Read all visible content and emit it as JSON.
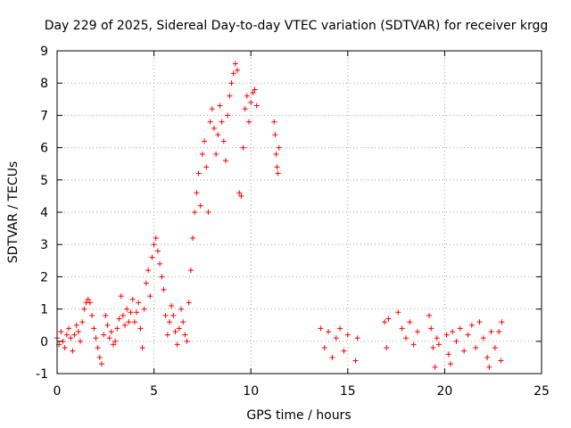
{
  "chart_data": {
    "type": "scatter",
    "title": "Day 229 of 2025, Sidereal Day-to-day VTEC variation (SDTVAR) for receiver krgg",
    "xlabel": "GPS time / hours",
    "ylabel": "SDTVAR / TECUs",
    "xlim": [
      0,
      25
    ],
    "ylim": [
      -1,
      9
    ],
    "xticks": [
      "0",
      "5",
      "10",
      "15",
      "20",
      "25"
    ],
    "yticks": [
      "-1",
      "0",
      "1",
      "2",
      "3",
      "4",
      "5",
      "6",
      "7",
      "8",
      "9"
    ],
    "grid": true,
    "marker": "plus",
    "series": [
      {
        "name": "SDTVAR",
        "color": "#ff0000",
        "points": [
          [
            0.0,
            0.1
          ],
          [
            0.1,
            -0.1
          ],
          [
            0.2,
            0.3
          ],
          [
            0.3,
            0.0
          ],
          [
            0.4,
            -0.2
          ],
          [
            0.5,
            0.2
          ],
          [
            0.6,
            0.4
          ],
          [
            0.7,
            0.1
          ],
          [
            0.8,
            -0.3
          ],
          [
            0.9,
            0.2
          ],
          [
            1.0,
            0.5
          ],
          [
            1.1,
            0.3
          ],
          [
            1.2,
            0.0
          ],
          [
            1.3,
            0.6
          ],
          [
            1.4,
            1.0
          ],
          [
            1.5,
            1.2
          ],
          [
            1.6,
            1.3
          ],
          [
            1.7,
            1.2
          ],
          [
            1.8,
            0.8
          ],
          [
            1.9,
            0.4
          ],
          [
            2.0,
            0.1
          ],
          [
            2.1,
            -0.2
          ],
          [
            2.2,
            -0.5
          ],
          [
            2.3,
            -0.7
          ],
          [
            2.4,
            0.2
          ],
          [
            2.5,
            0.8
          ],
          [
            2.6,
            0.5
          ],
          [
            2.7,
            0.1
          ],
          [
            2.8,
            0.3
          ],
          [
            2.9,
            -0.1
          ],
          [
            3.0,
            0.0
          ],
          [
            3.1,
            0.4
          ],
          [
            3.2,
            0.7
          ],
          [
            3.3,
            1.4
          ],
          [
            3.4,
            0.8
          ],
          [
            3.5,
            0.5
          ],
          [
            3.6,
            1.0
          ],
          [
            3.7,
            0.6
          ],
          [
            3.8,
            0.9
          ],
          [
            3.9,
            1.3
          ],
          [
            4.0,
            0.6
          ],
          [
            4.1,
            0.9
          ],
          [
            4.2,
            1.2
          ],
          [
            4.3,
            0.4
          ],
          [
            4.4,
            -0.2
          ],
          [
            4.5,
            1.0
          ],
          [
            4.6,
            1.8
          ],
          [
            4.7,
            2.2
          ],
          [
            4.8,
            1.4
          ],
          [
            4.9,
            2.6
          ],
          [
            5.0,
            3.0
          ],
          [
            5.1,
            3.2
          ],
          [
            5.2,
            2.8
          ],
          [
            5.3,
            2.4
          ],
          [
            5.4,
            2.0
          ],
          [
            5.5,
            1.6
          ],
          [
            5.6,
            0.8
          ],
          [
            5.7,
            0.2
          ],
          [
            5.8,
            0.6
          ],
          [
            5.9,
            1.1
          ],
          [
            6.0,
            0.8
          ],
          [
            6.1,
            0.3
          ],
          [
            6.2,
            -0.1
          ],
          [
            6.3,
            0.4
          ],
          [
            6.4,
            1.0
          ],
          [
            6.5,
            0.6
          ],
          [
            6.6,
            0.2
          ],
          [
            6.7,
            0.0
          ],
          [
            6.8,
            1.2
          ],
          [
            6.9,
            2.2
          ],
          [
            7.0,
            3.2
          ],
          [
            7.1,
            4.0
          ],
          [
            7.2,
            4.6
          ],
          [
            7.3,
            5.2
          ],
          [
            7.4,
            4.2
          ],
          [
            7.5,
            5.8
          ],
          [
            7.6,
            6.2
          ],
          [
            7.7,
            5.4
          ],
          [
            7.8,
            4.0
          ],
          [
            7.9,
            6.8
          ],
          [
            8.0,
            7.2
          ],
          [
            8.1,
            6.6
          ],
          [
            8.2,
            5.8
          ],
          [
            8.3,
            6.4
          ],
          [
            8.4,
            7.3
          ],
          [
            8.5,
            6.8
          ],
          [
            8.6,
            6.2
          ],
          [
            8.7,
            5.6
          ],
          [
            8.8,
            7.0
          ],
          [
            8.9,
            7.6
          ],
          [
            9.0,
            8.0
          ],
          [
            9.1,
            8.3
          ],
          [
            9.2,
            8.6
          ],
          [
            9.3,
            8.4
          ],
          [
            9.4,
            4.6
          ],
          [
            9.5,
            4.5
          ],
          [
            9.6,
            6.0
          ],
          [
            9.7,
            7.2
          ],
          [
            9.8,
            7.6
          ],
          [
            9.9,
            6.8
          ],
          [
            10.0,
            7.4
          ],
          [
            10.1,
            7.7
          ],
          [
            10.2,
            7.8
          ],
          [
            10.3,
            7.3
          ],
          [
            11.2,
            6.8
          ],
          [
            11.25,
            6.4
          ],
          [
            11.3,
            5.8
          ],
          [
            11.35,
            5.4
          ],
          [
            11.4,
            5.2
          ],
          [
            11.45,
            6.0
          ],
          [
            13.6,
            0.4
          ],
          [
            13.8,
            -0.2
          ],
          [
            14.0,
            0.3
          ],
          [
            14.2,
            -0.5
          ],
          [
            14.4,
            0.1
          ],
          [
            14.6,
            0.4
          ],
          [
            14.8,
            -0.3
          ],
          [
            15.0,
            0.2
          ],
          [
            15.4,
            -0.6
          ],
          [
            15.5,
            0.1
          ],
          [
            16.9,
            0.6
          ],
          [
            17.0,
            -0.2
          ],
          [
            17.1,
            0.7
          ],
          [
            17.6,
            0.9
          ],
          [
            17.8,
            0.4
          ],
          [
            18.0,
            0.1
          ],
          [
            18.2,
            0.6
          ],
          [
            18.4,
            -0.1
          ],
          [
            18.6,
            0.3
          ],
          [
            19.2,
            0.8
          ],
          [
            19.3,
            0.4
          ],
          [
            19.4,
            -0.2
          ],
          [
            19.5,
            -0.8
          ],
          [
            19.6,
            0.1
          ],
          [
            19.7,
            -0.1
          ],
          [
            20.1,
            0.2
          ],
          [
            20.2,
            -0.4
          ],
          [
            20.3,
            -0.7
          ],
          [
            20.4,
            0.3
          ],
          [
            20.6,
            0.0
          ],
          [
            20.8,
            0.4
          ],
          [
            21.0,
            -0.3
          ],
          [
            21.2,
            0.2
          ],
          [
            21.4,
            0.5
          ],
          [
            21.6,
            -0.2
          ],
          [
            21.8,
            0.6
          ],
          [
            22.0,
            0.1
          ],
          [
            22.2,
            -0.5
          ],
          [
            22.3,
            -0.8
          ],
          [
            22.4,
            0.3
          ],
          [
            22.6,
            -0.2
          ],
          [
            22.8,
            0.3
          ],
          [
            22.9,
            -0.6
          ],
          [
            22.95,
            0.6
          ]
        ]
      }
    ]
  }
}
